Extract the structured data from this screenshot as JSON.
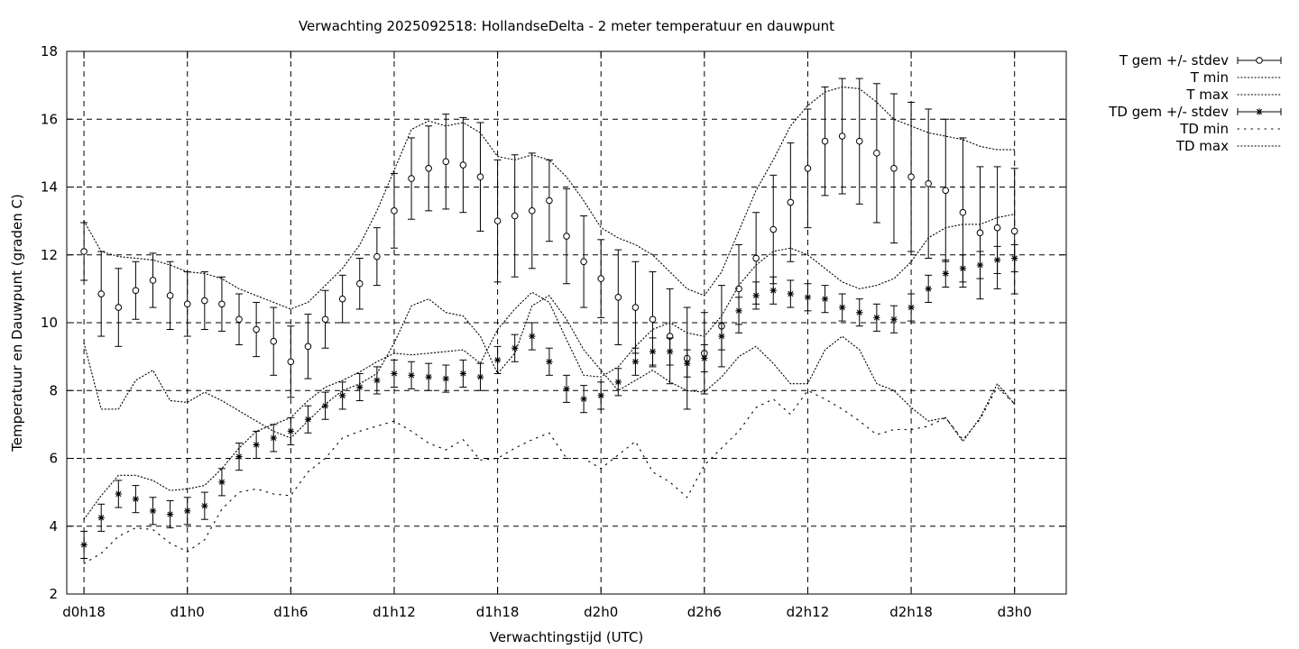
{
  "chart_data": {
    "type": "line",
    "title": "Verwachting 2025092518: HollandseDelta - 2 meter temperatuur en dauwpunt",
    "xlabel": "Verwachtingstijd (UTC)",
    "ylabel": "Temperatuur en Dauwpunt (graden C)",
    "x_unit": "hours since d0h18",
    "xlim": [
      -1,
      57
    ],
    "ylim": [
      2,
      18
    ],
    "y_ticks": [
      2,
      4,
      6,
      8,
      10,
      12,
      14,
      16,
      18
    ],
    "x_ticks": [
      {
        "x": 0,
        "label": "d0h18"
      },
      {
        "x": 6,
        "label": "d1h0"
      },
      {
        "x": 12,
        "label": "d1h6"
      },
      {
        "x": 18,
        "label": "d1h12"
      },
      {
        "x": 24,
        "label": "d1h18"
      },
      {
        "x": 30,
        "label": "d2h0"
      },
      {
        "x": 36,
        "label": "d2h6"
      },
      {
        "x": 42,
        "label": "d2h12"
      },
      {
        "x": 48,
        "label": "d2h18"
      },
      {
        "x": 54,
        "label": "d3h0"
      }
    ],
    "grid": true,
    "legend_position": "outside-right",
    "x": [
      0,
      1,
      2,
      3,
      4,
      5,
      6,
      7,
      8,
      9,
      10,
      11,
      12,
      13,
      14,
      15,
      16,
      17,
      18,
      19,
      20,
      21,
      22,
      23,
      24,
      25,
      26,
      27,
      28,
      29,
      30,
      31,
      32,
      33,
      34,
      35,
      36,
      37,
      38,
      39,
      40,
      41,
      42,
      43,
      44,
      45,
      46,
      47,
      48,
      49,
      50,
      51,
      52,
      53,
      54
    ],
    "series": [
      {
        "name": "T gem +/- stdev",
        "style": "errorbar-circle",
        "values": [
          12.1,
          10.85,
          10.45,
          10.95,
          11.25,
          10.8,
          10.55,
          10.65,
          10.55,
          10.1,
          9.8,
          9.45,
          8.85,
          9.3,
          10.1,
          10.7,
          11.15,
          11.95,
          13.3,
          14.25,
          14.55,
          14.75,
          14.65,
          14.3,
          13.0,
          13.15,
          13.3,
          13.6,
          12.55,
          11.8,
          11.3,
          10.75,
          10.45,
          10.1,
          9.6,
          8.95,
          9.1,
          9.9,
          11.0,
          11.9,
          12.75,
          13.55,
          14.55,
          15.35,
          15.5,
          15.35,
          15.0,
          14.55,
          14.3,
          14.1,
          13.9,
          13.25,
          12.65,
          12.8,
          12.7
        ],
        "stdev": [
          0.85,
          1.25,
          1.15,
          0.85,
          0.8,
          1.0,
          0.95,
          0.85,
          0.8,
          0.75,
          0.8,
          1.0,
          1.05,
          0.95,
          0.85,
          0.7,
          0.75,
          0.85,
          1.1,
          1.2,
          1.25,
          1.4,
          1.4,
          1.6,
          1.8,
          1.8,
          1.7,
          1.2,
          1.4,
          1.35,
          1.15,
          1.4,
          1.35,
          1.4,
          1.4,
          1.5,
          1.2,
          1.2,
          1.3,
          1.35,
          1.6,
          1.75,
          1.75,
          1.6,
          1.7,
          1.85,
          2.05,
          2.2,
          2.2,
          2.2,
          2.1,
          2.2,
          1.95,
          1.8,
          1.85
        ]
      },
      {
        "name": "T min",
        "style": "dotted",
        "values": [
          9.4,
          7.45,
          7.45,
          8.3,
          8.6,
          7.7,
          7.65,
          7.95,
          7.7,
          7.4,
          7.1,
          6.8,
          6.6,
          7.1,
          7.6,
          8.0,
          8.2,
          8.5,
          9.4,
          10.5,
          10.7,
          10.3,
          10.2,
          9.6,
          8.5,
          9.1,
          10.5,
          10.8,
          10.1,
          9.2,
          8.6,
          8.0,
          8.3,
          8.6,
          8.25,
          8.0,
          7.95,
          8.4,
          9.0,
          9.3,
          8.8,
          8.2,
          8.2,
          9.2,
          9.6,
          9.2,
          8.2,
          8.0,
          7.5,
          7.1,
          7.2,
          6.5,
          7.2,
          8.2,
          7.6
        ]
      },
      {
        "name": "T max",
        "style": "dotted",
        "values": [
          13.0,
          12.1,
          11.95,
          11.9,
          11.85,
          11.7,
          11.5,
          11.45,
          11.3,
          11.0,
          10.8,
          10.6,
          10.4,
          10.6,
          11.1,
          11.6,
          12.3,
          13.3,
          14.5,
          15.7,
          15.95,
          15.8,
          15.9,
          15.6,
          14.9,
          14.8,
          14.95,
          14.8,
          14.3,
          13.6,
          12.8,
          12.5,
          12.3,
          12.0,
          11.5,
          11.0,
          10.8,
          11.5,
          12.7,
          13.9,
          14.8,
          15.8,
          16.4,
          16.8,
          16.95,
          16.9,
          16.5,
          16.0,
          15.8,
          15.6,
          15.5,
          15.4,
          15.2,
          15.1,
          15.1
        ]
      },
      {
        "name": "TD gem +/- stdev",
        "style": "errorbar-star",
        "values": [
          3.45,
          4.25,
          4.95,
          4.8,
          4.45,
          4.35,
          4.45,
          4.6,
          5.3,
          6.05,
          6.4,
          6.6,
          6.8,
          7.15,
          7.55,
          7.85,
          8.1,
          8.3,
          8.5,
          8.45,
          8.4,
          8.35,
          8.5,
          8.4,
          8.9,
          9.25,
          9.6,
          8.85,
          8.05,
          7.75,
          7.85,
          8.25,
          8.85,
          9.15,
          9.15,
          8.8,
          8.95,
          9.6,
          10.35,
          10.8,
          10.95,
          10.85,
          10.75,
          10.7,
          10.45,
          10.3,
          10.15,
          10.1,
          10.45,
          11.0,
          11.45,
          11.6,
          11.7,
          11.85,
          11.9
        ]
      },
      {
        "name": "TD min",
        "style": "dotted-sparse",
        "values": [
          2.9,
          3.2,
          3.7,
          3.95,
          3.9,
          3.5,
          3.25,
          3.6,
          4.5,
          5.0,
          5.1,
          4.95,
          4.9,
          5.6,
          6.0,
          6.6,
          6.8,
          6.95,
          7.1,
          6.8,
          6.45,
          6.25,
          6.55,
          5.95,
          6.0,
          6.3,
          6.55,
          6.75,
          6.0,
          6.0,
          5.7,
          6.1,
          6.5,
          5.6,
          5.3,
          4.85,
          5.8,
          6.3,
          6.8,
          7.5,
          7.75,
          7.3,
          8.0,
          7.75,
          7.45,
          7.1,
          6.7,
          6.85,
          6.85,
          6.95,
          7.2,
          6.55,
          7.15,
          8.1,
          7.6
        ]
      },
      {
        "name": "TD max",
        "style": "dotted",
        "values": [
          4.2,
          4.9,
          5.5,
          5.5,
          5.35,
          5.05,
          5.1,
          5.2,
          5.7,
          6.3,
          6.8,
          7.0,
          7.2,
          7.7,
          8.1,
          8.3,
          8.55,
          8.85,
          9.1,
          9.05,
          9.1,
          9.15,
          9.2,
          8.8,
          9.8,
          10.4,
          10.9,
          10.6,
          9.5,
          8.45,
          8.4,
          8.7,
          9.3,
          9.8,
          10.0,
          9.7,
          9.6,
          10.2,
          11.1,
          11.7,
          12.1,
          12.2,
          12.0,
          11.6,
          11.2,
          11.0,
          11.1,
          11.3,
          11.8,
          12.5,
          12.8,
          12.9,
          12.9,
          13.1,
          13.2
        ]
      }
    ]
  }
}
